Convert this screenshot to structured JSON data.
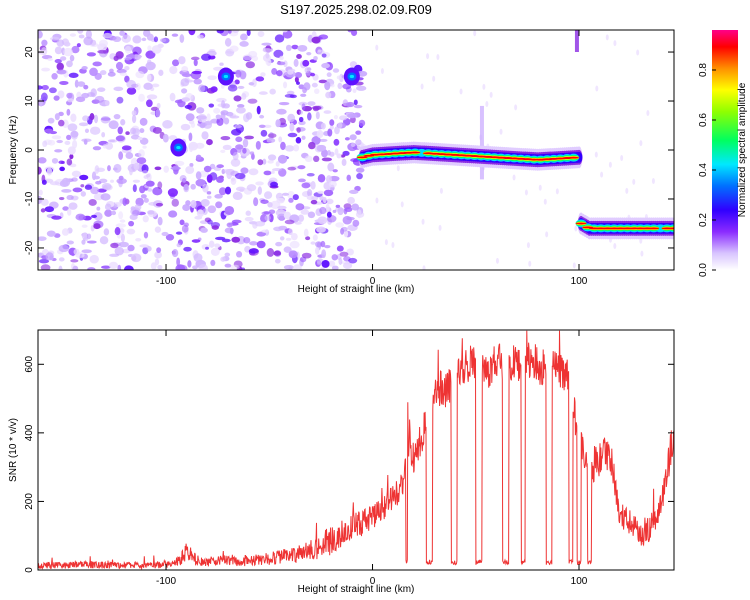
{
  "title": "S197.2025.298.02.09.R09",
  "chart_data": [
    {
      "type": "heatmap",
      "xlabel": "Height of straight line (km)",
      "ylabel": "Frequency (Hz)",
      "xlim": [
        -162,
        146
      ],
      "ylim": [
        -24.5,
        24.5
      ],
      "xticks": [
        -100,
        0,
        100
      ],
      "yticks": [
        -20,
        -10,
        0,
        10,
        20
      ],
      "colorbar": {
        "label": "Normalized spectral amplitude",
        "range": [
          0,
          0.96
        ],
        "ticks": [
          0.0,
          0.2,
          0.4,
          0.6,
          0.8
        ]
      },
      "features": [
        {
          "name": "noise-region",
          "x_range": [
            -162,
            -5
          ],
          "freq_range": [
            -24.5,
            24.5
          ],
          "amplitude": "0.1-0.3"
        },
        {
          "name": "burst-a",
          "x": -94,
          "freq": 0.5,
          "amplitude": 0.3
        },
        {
          "name": "burst-b",
          "x": -71,
          "freq": 15,
          "amplitude": 0.3
        },
        {
          "name": "burst-c",
          "x": -10,
          "freq": 15,
          "amplitude": 0.3
        },
        {
          "name": "doppler-track-1",
          "points": [
            [
              -5,
              -1.5
            ],
            [
              0,
              -1
            ],
            [
              20,
              -0.5
            ],
            [
              40,
              -1
            ],
            [
              60,
              -1.5
            ],
            [
              80,
              -2
            ],
            [
              100,
              -1.5
            ]
          ],
          "amplitude": "0.5-0.96"
        },
        {
          "name": "doppler-track-2",
          "points": [
            [
              101,
              -15
            ],
            [
              105,
              -16
            ],
            [
              146,
              -16
            ]
          ],
          "amplitude": "0.5-0.96"
        }
      ]
    },
    {
      "type": "line",
      "xlabel": "Height of straight line (km)",
      "ylabel": "SNR (10 * v/v)",
      "xlim": [
        -162,
        146
      ],
      "ylim": [
        0,
        700
      ],
      "xticks": [
        -100,
        0,
        100
      ],
      "yticks": [
        0,
        200,
        400,
        600
      ],
      "color": "#ee3333",
      "series": [
        {
          "name": "SNR",
          "x": [
            -162,
            -150,
            -140,
            -130,
            -120,
            -110,
            -100,
            -95,
            -90,
            -85,
            -80,
            -70,
            -60,
            -50,
            -40,
            -30,
            -20,
            -15,
            -10,
            -5,
            0,
            5,
            10,
            15,
            18,
            20,
            23,
            25,
            30,
            35,
            40,
            45,
            50,
            55,
            60,
            65,
            70,
            75,
            80,
            85,
            90,
            95,
            100,
            105,
            110,
            115,
            120,
            125,
            130,
            135,
            140,
            146
          ],
          "y": [
            15,
            15,
            16,
            15,
            15,
            15,
            18,
            25,
            55,
            30,
            25,
            30,
            28,
            35,
            45,
            60,
            90,
            110,
            130,
            140,
            160,
            180,
            220,
            250,
            400,
            320,
            380,
            420,
            540,
            530,
            560,
            610,
            600,
            580,
            620,
            600,
            610,
            620,
            600,
            590,
            600,
            560,
            380,
            300,
            330,
            350,
            160,
            140,
            110,
            130,
            200,
            420
          ]
        }
      ],
      "dropouts": [
        [
          16,
          17
        ],
        [
          26,
          29
        ],
        [
          38,
          41
        ],
        [
          50,
          53
        ],
        [
          63,
          66
        ],
        [
          72,
          74
        ],
        [
          84,
          87
        ],
        [
          95,
          97
        ],
        [
          99,
          101
        ],
        [
          104,
          106
        ]
      ]
    }
  ]
}
